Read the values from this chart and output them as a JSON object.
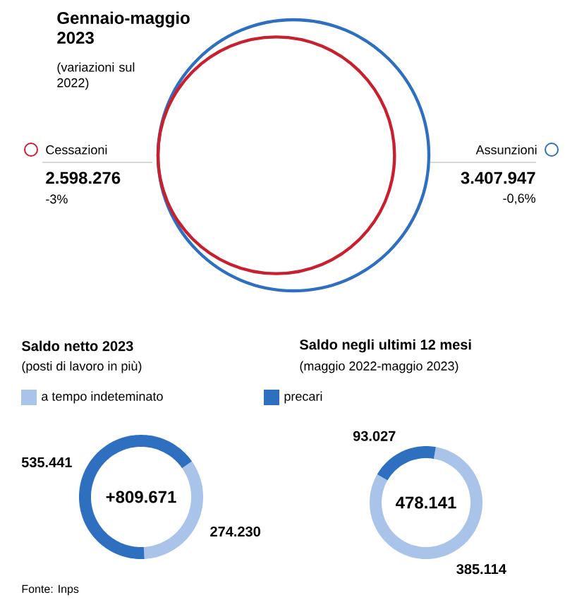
{
  "chart_data": [
    {
      "type": "other",
      "title": "Gennaio-maggio 2023",
      "subtitle": "(variazioni sul 2022)",
      "categories": [
        "Cessazioni",
        "Assunzioni"
      ],
      "values": [
        2598276,
        3407947
      ],
      "value_labels": [
        "2.598.276",
        "3.407.947"
      ],
      "colors": [
        "#c8202f",
        "#2e6fc0"
      ],
      "annotations": [
        "-3%",
        "-0,6%"
      ]
    },
    {
      "type": "donut",
      "title": "Saldo netto 2023",
      "subtitle": "(posti di lavoro in più)",
      "categories": [
        "a tempo indeteminato",
        "precari"
      ],
      "values": [
        274230,
        535441
      ],
      "value_labels": [
        "274.230",
        "535.441"
      ],
      "colors": [
        "#a9c4e8",
        "#2e6fc0"
      ],
      "legend": "top",
      "annotations": [
        "+809.671",
        "Fonte: Inps"
      ]
    },
    {
      "type": "donut",
      "title": "Saldo negli ultimi 12 mesi",
      "subtitle": "(maggio 2022-maggio 2023)",
      "categories": [
        null,
        null
      ],
      "values": [
        385114,
        93027
      ],
      "value_labels": [
        "385.114",
        "93.027"
      ],
      "colors": [
        "#a9c4e8",
        "#2e6fc0"
      ],
      "annotations": [
        "478.141"
      ]
    }
  ]
}
